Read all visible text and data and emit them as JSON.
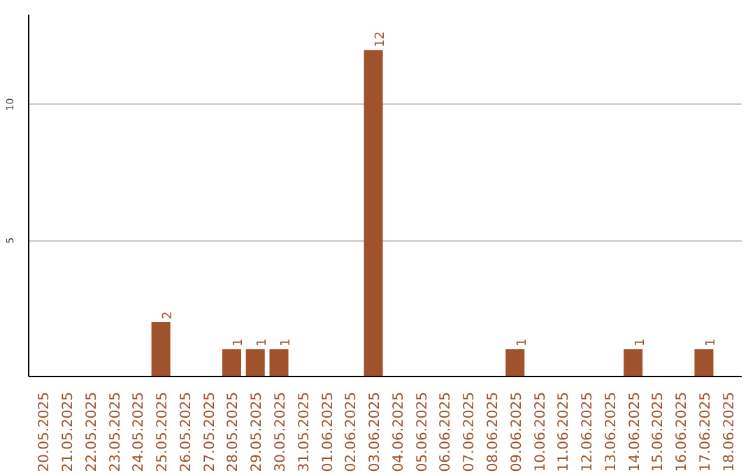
{
  "chart_data": {
    "type": "bar",
    "categories": [
      "20.05.2025",
      "21.05.2025",
      "22.05.2025",
      "23.05.2025",
      "24.05.2025",
      "25.05.2025",
      "26.05.2025",
      "27.05.2025",
      "28.05.2025",
      "29.05.2025",
      "30.05.2025",
      "31.05.2025",
      "01.06.2025",
      "02.06.2025",
      "03.06.2025",
      "04.06.2025",
      "05.06.2025",
      "06.06.2025",
      "07.06.2025",
      "08.06.2025",
      "09.06.2025",
      "10.06.2025",
      "11.06.2025",
      "12.06.2025",
      "13.06.2025",
      "14.06.2025",
      "15.06.2025",
      "16.06.2025",
      "17.06.2025",
      "18.06.2025"
    ],
    "values": [
      0,
      0,
      0,
      0,
      0,
      2,
      0,
      0,
      1,
      1,
      1,
      0,
      0,
      0,
      12,
      0,
      0,
      0,
      0,
      0,
      1,
      0,
      0,
      0,
      0,
      1,
      0,
      0,
      1,
      0
    ],
    "value_labels": [
      null,
      null,
      null,
      null,
      null,
      "2",
      null,
      null,
      "1",
      "1",
      "1",
      null,
      null,
      null,
      "12",
      null,
      null,
      null,
      null,
      null,
      "1",
      null,
      null,
      null,
      null,
      "1",
      null,
      null,
      "1",
      null
    ],
    "color": "#a0522d",
    "ylim": [
      0,
      13.3
    ],
    "yticks": [
      5,
      10
    ],
    "grid": "y"
  }
}
